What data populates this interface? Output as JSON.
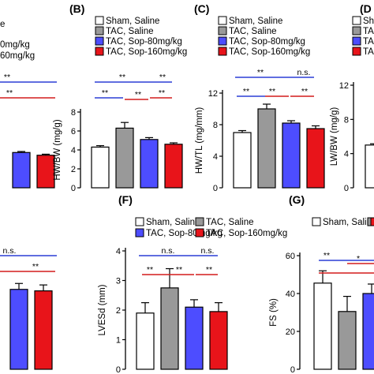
{
  "colors": {
    "sham": "#ffffff",
    "tac": "#999999",
    "sop80": "#4d4dff",
    "sop160": "#e8141a",
    "sig_blue": "#2b3fd6",
    "sig_red": "#d41c1c"
  },
  "legend_labels": {
    "sham": "Sham, Saline",
    "tac": "TAC, Saline",
    "sop80": "TAC, Sop-80mg/kg",
    "sop160": "TAC, Sop-160mg/kg"
  },
  "chart_data": [
    {
      "id": "A",
      "panel_label": "",
      "type": "bar",
      "visible_text": [
        "e",
        "0mg/kg",
        "60mg/kg"
      ],
      "categories": [
        "Sham, Saline",
        "TAC, Saline",
        "TAC, Sop-80mg/kg",
        "TAC, Sop-160mg/kg"
      ],
      "series": [
        {
          "values": [
            null,
            null,
            5.2,
            4.8
          ],
          "errors": [
            null,
            null,
            0.15,
            0.15
          ]
        }
      ],
      "ylim": [
        0,
        10
      ],
      "brackets": [
        {
          "label": "**",
          "color": "blue"
        },
        {
          "label": "**",
          "color": "red"
        }
      ]
    },
    {
      "id": "B",
      "panel_label": "(B)",
      "type": "bar",
      "ylabel": "HW/BW (mg/g)",
      "categories": [
        "Sham, Saline",
        "TAC, Saline",
        "TAC, Sop-80mg/kg",
        "TAC, Sop-160mg/kg"
      ],
      "series": [
        {
          "values": [
            4.3,
            6.3,
            5.1,
            4.6
          ],
          "errors": [
            0.15,
            0.6,
            0.2,
            0.15
          ]
        }
      ],
      "yticks": [
        "0",
        "2",
        "4",
        "6",
        "8"
      ],
      "ylim": [
        0,
        8
      ],
      "legend": [
        "Sham, Saline",
        "TAC, Saline",
        "TAC, Sop-80mg/kg",
        "TAC, Sop-160mg/kg"
      ],
      "brackets": [
        {
          "label": "**",
          "color": "blue"
        },
        {
          "label": "**",
          "color": "blue"
        },
        {
          "label": "**",
          "color": "blue"
        },
        {
          "label": "**",
          "color": "red"
        },
        {
          "label": "**",
          "color": "red"
        }
      ]
    },
    {
      "id": "C",
      "panel_label": "(C)",
      "type": "bar",
      "ylabel": "HW/TL (mg/mm)",
      "categories": [
        "Sham, Saline",
        "TAC, Saline",
        "TAC, Sop-80mg/kg",
        "TAC, Sop-160mg/kg"
      ],
      "series": [
        {
          "values": [
            7.0,
            10.0,
            8.2,
            7.5
          ],
          "errors": [
            0.25,
            0.6,
            0.3,
            0.35
          ]
        }
      ],
      "yticks": [
        "0",
        "4",
        "8",
        "12"
      ],
      "ylim": [
        0,
        12
      ],
      "legend": [
        "Sham, Saline",
        "TAC, Saline",
        "TAC, Sop-80mg/kg",
        "TAC, Sop-160mg/kg"
      ],
      "brackets": [
        {
          "label": "**",
          "color": "blue"
        },
        {
          "label": "n.s.",
          "color": "blue"
        },
        {
          "label": "**",
          "color": "blue"
        },
        {
          "label": "**",
          "color": "red"
        },
        {
          "label": "**",
          "color": "red"
        }
      ]
    },
    {
      "id": "D",
      "panel_label": "(D",
      "type": "bar",
      "ylabel": "LW/BW (mg/g)",
      "visible_text": [
        "Sh",
        "TA",
        "TA",
        "TA"
      ],
      "categories": [
        "Sham, Saline"
      ],
      "series": [
        {
          "values": [
            5.0
          ],
          "errors": [
            0.15
          ]
        }
      ],
      "yticks": [
        "0",
        "4",
        "8",
        "12"
      ],
      "ylim": [
        0,
        12
      ]
    },
    {
      "id": "E",
      "panel_label": "",
      "type": "bar",
      "categories": [
        "TAC, Sop-80mg/kg",
        "TAC, Sop-160mg/kg"
      ],
      "series": [
        {
          "values": [
            2.7,
            2.65
          ],
          "errors": [
            0.2,
            0.2
          ]
        }
      ],
      "legend": [
        "TAC, Sop-80mg/kg",
        "TAC, Sop-160mg/kg"
      ],
      "ylim": [
        0,
        4
      ],
      "brackets": [
        {
          "label": "n.s.",
          "color": "blue"
        },
        {
          "label": "**",
          "color": "red"
        }
      ]
    },
    {
      "id": "F",
      "panel_label": "(F)",
      "type": "bar",
      "ylabel": "LVESd (mm)",
      "categories": [
        "Sham, Saline",
        "TAC, Saline",
        "TAC, Sop-80mg/kg",
        "TAC, Sop-160mg/kg"
      ],
      "series": [
        {
          "values": [
            1.9,
            2.75,
            2.1,
            1.95
          ],
          "errors": [
            0.35,
            0.65,
            0.25,
            0.3
          ]
        }
      ],
      "yticks": [
        "0",
        "1",
        "2",
        "3",
        "4"
      ],
      "ylim": [
        0,
        4
      ],
      "legend": [
        "Sham, Saline",
        "TAC, Saline",
        "TAC, Sop-80mg/kg",
        "TAC, Sop-160mg/kg"
      ],
      "brackets": [
        {
          "label": "n.s.",
          "color": "blue"
        },
        {
          "label": "n.s.",
          "color": "blue"
        },
        {
          "label": "**",
          "color": "red"
        },
        {
          "label": "**",
          "color": "red"
        },
        {
          "label": "**",
          "color": "red"
        }
      ]
    },
    {
      "id": "G",
      "panel_label": "(G)",
      "type": "bar",
      "ylabel": "FS (%)",
      "categories": [
        "Sham, Saline",
        "TAC, Saline",
        "TAC, Sop-80mg/kg"
      ],
      "series": [
        {
          "values": [
            45.5,
            30.5,
            40
          ],
          "errors": [
            6.5,
            8,
            5
          ]
        }
      ],
      "yticks": [
        "0",
        "20",
        "40",
        "60"
      ],
      "ylim": [
        0,
        60
      ],
      "legend": [
        "Sham, Saline",
        "TAC, Saline"
      ],
      "brackets": [
        {
          "label": "**",
          "color": "blue"
        },
        {
          "label": "*",
          "color": "red"
        }
      ]
    }
  ]
}
